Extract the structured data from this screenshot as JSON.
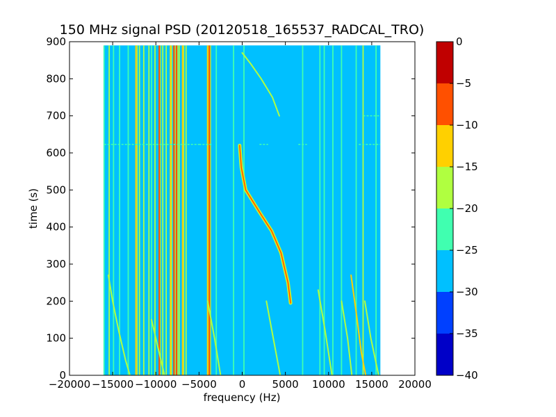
{
  "chart_data": {
    "type": "heatmap",
    "title": "150 MHz signal PSD (20120518_165537_RADCAL_TRO)",
    "xlabel": "frequency (Hz)",
    "ylabel": "time (s)",
    "xlim": [
      -20000,
      20000
    ],
    "ylim": [
      0,
      900
    ],
    "data_extent": {
      "x": [
        -16000,
        16000
      ],
      "y": [
        0,
        890
      ]
    },
    "x_ticks": [
      -20000,
      -15000,
      -10000,
      -5000,
      0,
      5000,
      10000,
      15000,
      20000
    ],
    "x_tick_labels": [
      "−20000",
      "−15000",
      "−10000",
      "−5000",
      "0",
      "5000",
      "10000",
      "15000",
      "20000"
    ],
    "y_ticks": [
      0,
      100,
      200,
      300,
      400,
      500,
      600,
      700,
      800,
      900
    ],
    "y_tick_labels": [
      "0",
      "100",
      "200",
      "300",
      "400",
      "500",
      "600",
      "700",
      "800",
      "900"
    ],
    "background_level": -28,
    "colorbar": {
      "levels": [
        -40,
        -35,
        -30,
        -25,
        -20,
        -15,
        -10,
        -5,
        0
      ],
      "level_labels": [
        "−40",
        "−35",
        "−30",
        "−25",
        "−20",
        "−15",
        "−10",
        "−5",
        "0"
      ],
      "colors": [
        "#0000c8",
        "#0040ff",
        "#00c0ff",
        "#40ffb0",
        "#b0ff40",
        "#ffd000",
        "#ff5000",
        "#c00000"
      ]
    },
    "vertical_lines": [
      {
        "freq": -16000,
        "level": -24
      },
      {
        "freq": -15400,
        "level": -20
      },
      {
        "freq": -14900,
        "level": -24
      },
      {
        "freq": -14200,
        "level": -24
      },
      {
        "freq": -13200,
        "level": -24
      },
      {
        "freq": -12300,
        "level": -12
      },
      {
        "freq": -11900,
        "level": -20
      },
      {
        "freq": -11400,
        "level": -17
      },
      {
        "freq": -10800,
        "level": -18
      },
      {
        "freq": -10500,
        "level": -22
      },
      {
        "freq": -10100,
        "level": -20
      },
      {
        "freq": -9600,
        "level": -10
      },
      {
        "freq": -9200,
        "level": -18
      },
      {
        "freq": -8800,
        "level": -20
      },
      {
        "freq": -8300,
        "level": -14
      },
      {
        "freq": -7900,
        "level": -10
      },
      {
        "freq": -7600,
        "level": -6
      },
      {
        "freq": -7300,
        "level": -20
      },
      {
        "freq": -6900,
        "level": -12
      },
      {
        "freq": -6500,
        "level": -20
      },
      {
        "freq": -4000,
        "level": -14
      },
      {
        "freq": -3800,
        "level": -8
      },
      {
        "freq": -3000,
        "level": -24
      },
      {
        "freq": -1000,
        "level": -24
      },
      {
        "freq": 200,
        "level": -24
      },
      {
        "freq": 7000,
        "level": -24
      },
      {
        "freq": 9000,
        "level": -22
      },
      {
        "freq": 9500,
        "level": -24
      },
      {
        "freq": 10500,
        "level": -24
      },
      {
        "freq": 11500,
        "level": -24
      },
      {
        "freq": 13200,
        "level": -22
      },
      {
        "freq": 14000,
        "level": -20
      },
      {
        "freq": 15500,
        "level": -24
      }
    ],
    "drift_tracks": [
      {
        "level": -20,
        "points": [
          [
            0,
            870
          ],
          [
            1000,
            840
          ],
          [
            2200,
            800
          ],
          [
            3500,
            750
          ],
          [
            4300,
            700
          ]
        ]
      },
      {
        "level": -6,
        "points": [
          [
            -300,
            620
          ],
          [
            -100,
            560
          ],
          [
            400,
            500
          ],
          [
            2000,
            440
          ],
          [
            3400,
            390
          ],
          [
            4500,
            330
          ],
          [
            5000,
            280
          ],
          [
            5300,
            250
          ],
          [
            5600,
            195
          ]
        ]
      },
      {
        "level": -20,
        "points": [
          [
            -15500,
            270
          ],
          [
            -15000,
            200
          ],
          [
            -14300,
            120
          ],
          [
            -13500,
            40
          ],
          [
            -13000,
            0
          ]
        ]
      },
      {
        "level": -20,
        "points": [
          [
            -10500,
            150
          ],
          [
            -9800,
            80
          ],
          [
            -9000,
            0
          ]
        ]
      },
      {
        "level": -20,
        "points": [
          [
            -4000,
            200
          ],
          [
            -3200,
            100
          ],
          [
            -2500,
            0
          ]
        ]
      },
      {
        "level": -20,
        "points": [
          [
            2800,
            200
          ],
          [
            3600,
            100
          ],
          [
            4400,
            0
          ]
        ]
      },
      {
        "level": -20,
        "points": [
          [
            8800,
            230
          ],
          [
            9600,
            120
          ],
          [
            10400,
            0
          ]
        ]
      },
      {
        "level": -20,
        "points": [
          [
            11500,
            200
          ],
          [
            12200,
            100
          ],
          [
            12700,
            0
          ]
        ]
      },
      {
        "level": -14,
        "points": [
          [
            12600,
            270
          ],
          [
            13200,
            170
          ],
          [
            13800,
            60
          ],
          [
            14300,
            0
          ]
        ]
      },
      {
        "level": -20,
        "points": [
          [
            14200,
            200
          ],
          [
            14900,
            100
          ],
          [
            15800,
            0
          ]
        ]
      }
    ],
    "horizontal_artifacts": [
      {
        "time": 623,
        "x_ranges": [
          [
            -16000,
            -5000
          ],
          [
            -5000,
            -3500
          ],
          [
            2000,
            3000
          ],
          [
            6500,
            7500
          ],
          [
            13500,
            16000
          ]
        ],
        "level": -22
      },
      {
        "time": 700,
        "x_ranges": [
          [
            14000,
            16000
          ]
        ],
        "level": -22
      }
    ]
  }
}
